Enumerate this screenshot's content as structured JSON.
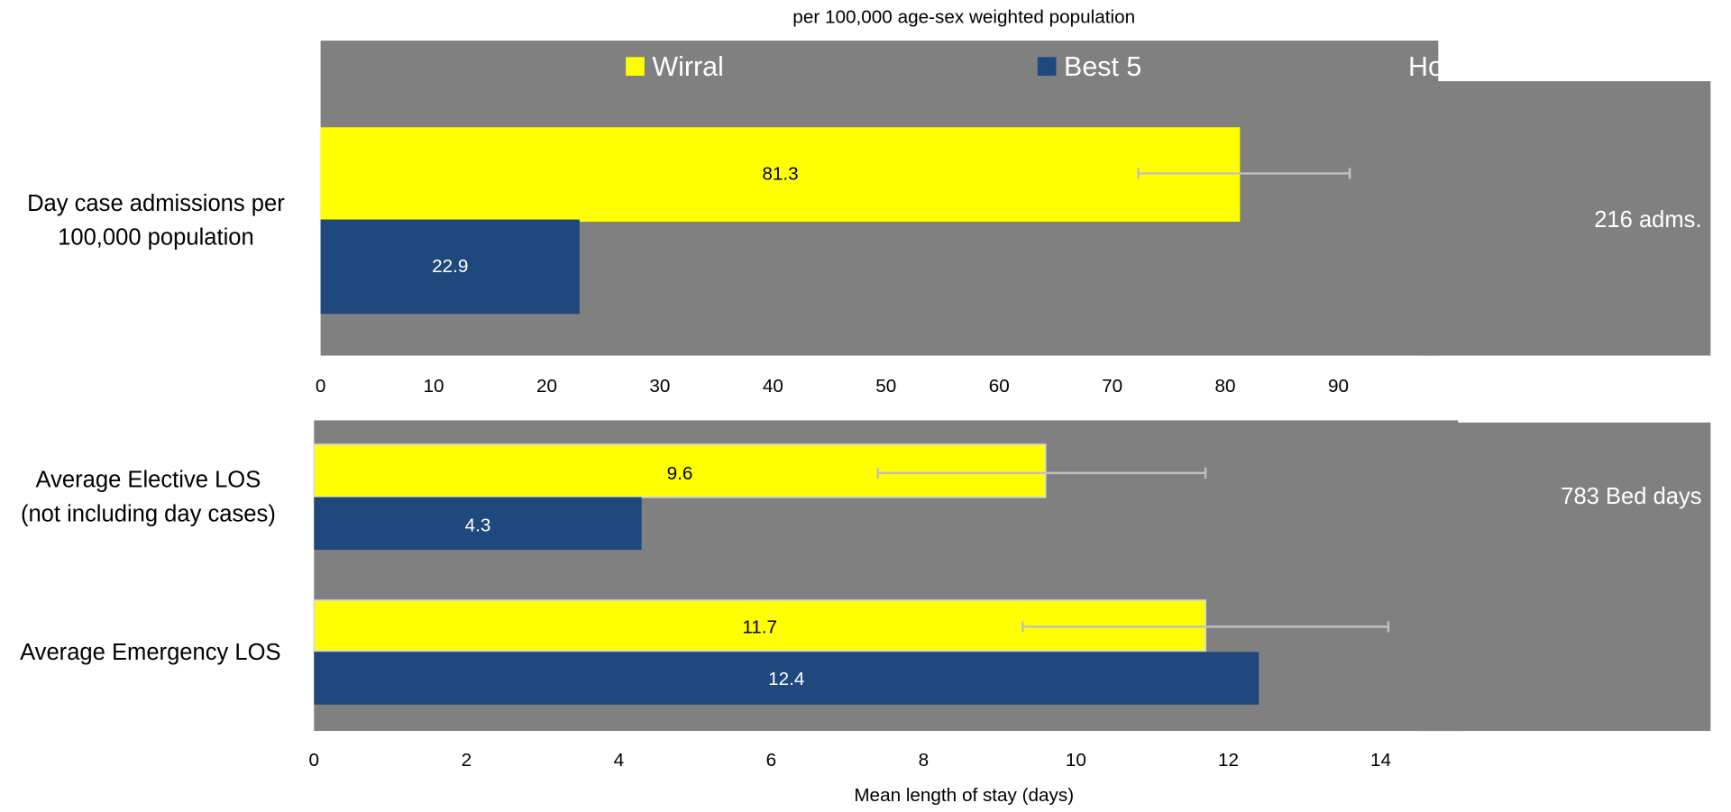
{
  "subtitle": "per 100,000 age-sex weighted population",
  "legend": [
    {
      "label": "Wirral",
      "color": "#FFFF00"
    },
    {
      "label": "Best 5",
      "color": "#1F497D"
    }
  ],
  "side_title": "How different are we?",
  "colors": {
    "panel": "#808080",
    "error_bar": "#C0C0C0",
    "wirral": "#FFFF00",
    "best5": "#1F497D"
  },
  "chart_data": [
    {
      "type": "bar",
      "orientation": "horizontal",
      "categories": [
        "Day case admissions per 100,000 population"
      ],
      "category_lines": [
        [
          "Day case admissions per",
          "100,000 population"
        ]
      ],
      "series": [
        {
          "name": "Wirral",
          "values": [
            81.3
          ],
          "error_low": [
            72.3
          ],
          "error_high": [
            91.0
          ]
        },
        {
          "name": "Best 5",
          "values": [
            22.9
          ]
        }
      ],
      "xlim": [
        0,
        98
      ],
      "xticks": [
        0,
        10,
        20,
        30,
        40,
        50,
        60,
        70,
        80,
        90
      ],
      "xlabel": "",
      "difference": "216 adms."
    },
    {
      "type": "bar",
      "orientation": "horizontal",
      "categories": [
        "Average Elective LOS (not including day cases)",
        "Average Emergency LOS"
      ],
      "category_lines": [
        [
          "Average Elective LOS",
          "(not including day cases)"
        ],
        [
          "Average Emergency LOS"
        ]
      ],
      "series": [
        {
          "name": "Wirral",
          "values": [
            9.6,
            11.7
          ],
          "error_low": [
            7.4,
            9.3
          ],
          "error_high": [
            11.7,
            14.1
          ]
        },
        {
          "name": "Best 5",
          "values": [
            4.3,
            12.4
          ]
        }
      ],
      "xlim": [
        0,
        14.7
      ],
      "xticks": [
        0,
        2,
        4,
        6,
        8,
        10,
        12,
        14
      ],
      "xlabel": "Mean length of stay (days)",
      "difference": "783 Bed days"
    }
  ]
}
